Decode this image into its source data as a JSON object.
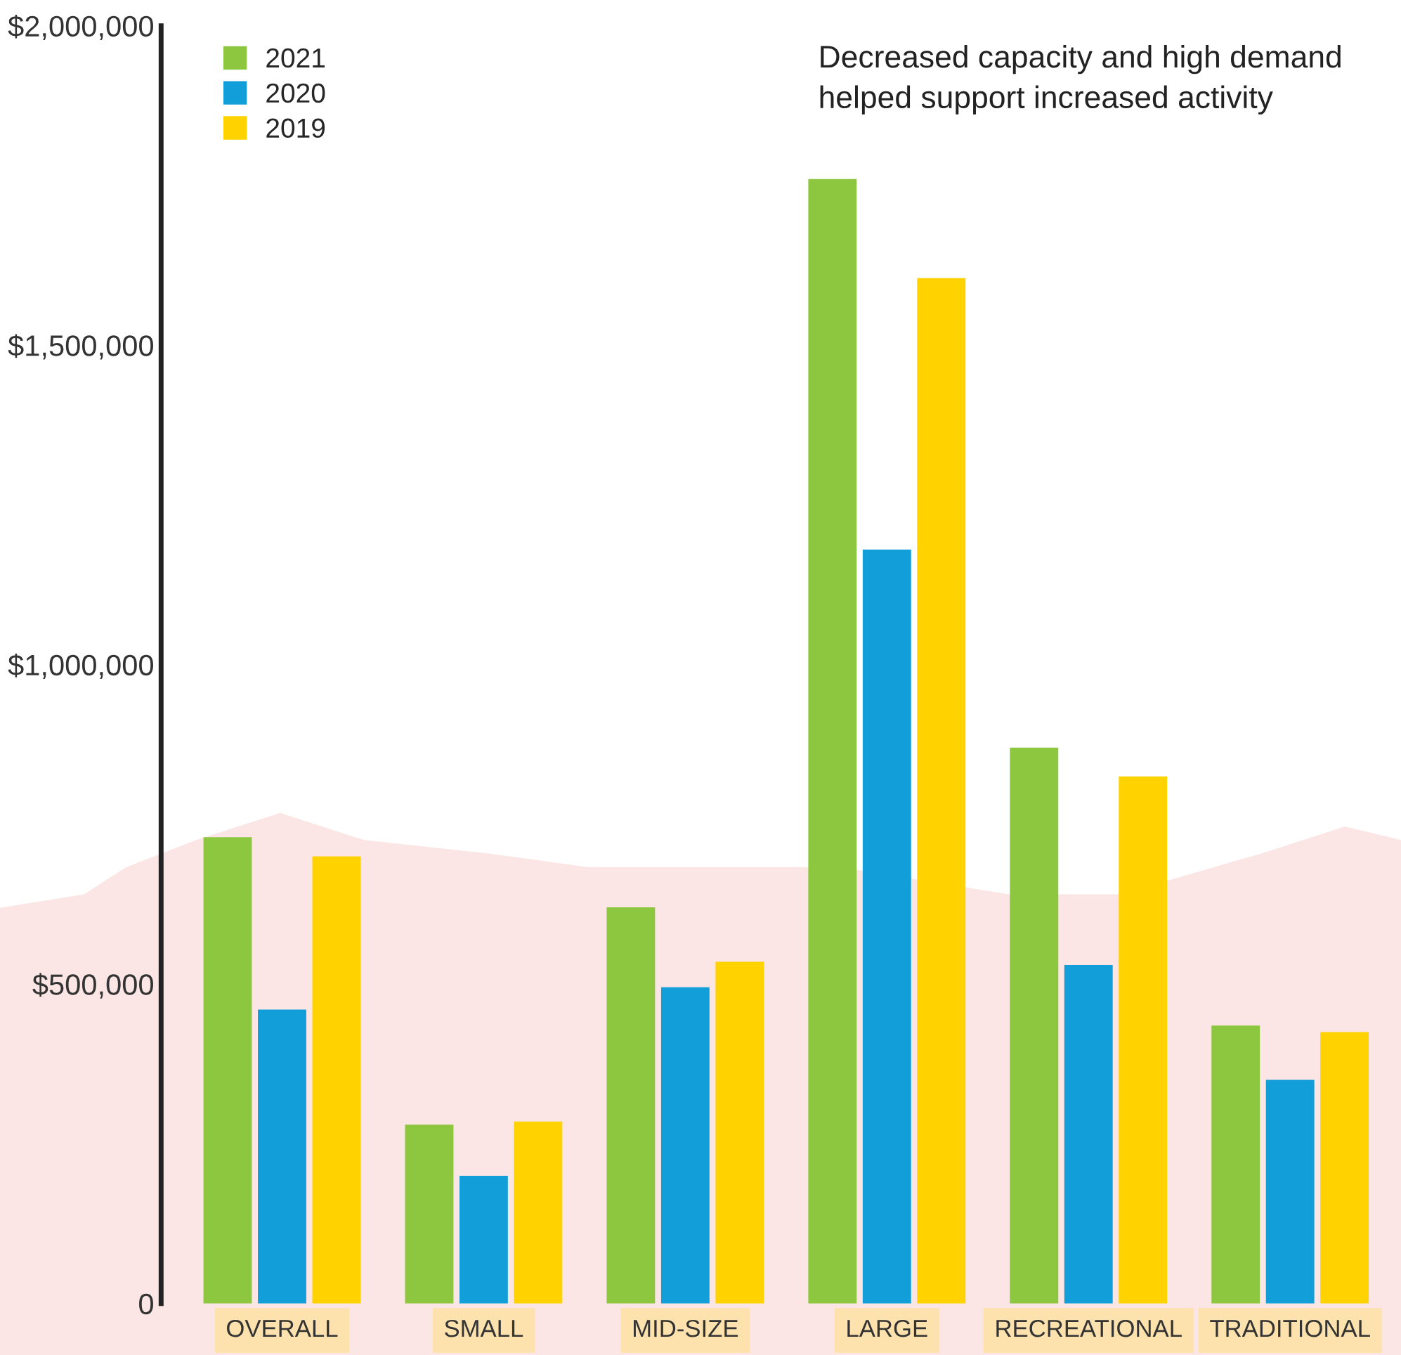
{
  "chart_data": {
    "type": "bar",
    "categories": [
      "OVERALL",
      "SMALL",
      "MID-SIZE",
      "LARGE",
      "RECREATIONAL",
      "TRADITIONAL"
    ],
    "series": [
      {
        "name": "2021",
        "color": "#8dc63f",
        "values": [
          730000,
          280000,
          620000,
          1760000,
          870000,
          435000
        ]
      },
      {
        "name": "2020",
        "color": "#129fd9",
        "values": [
          460000,
          200000,
          495000,
          1180000,
          530000,
          350000
        ]
      },
      {
        "name": "2019",
        "color": "#ffd200",
        "values": [
          700000,
          285000,
          535000,
          1605000,
          825000,
          425000
        ]
      }
    ],
    "ylim": [
      0,
      2000000
    ],
    "yticks": [
      {
        "value": 0,
        "label": "0"
      },
      {
        "value": 500000,
        "label": "$500,000"
      },
      {
        "value": 1000000,
        "label": "$1,000,000"
      },
      {
        "value": 1500000,
        "label": "$1,500,000"
      },
      {
        "value": 2000000,
        "label": "$2,000,000"
      }
    ],
    "annotations": [
      "Decreased capacity and high demand\nhelped support increased activity"
    ],
    "legend": "top left",
    "grid": false
  }
}
